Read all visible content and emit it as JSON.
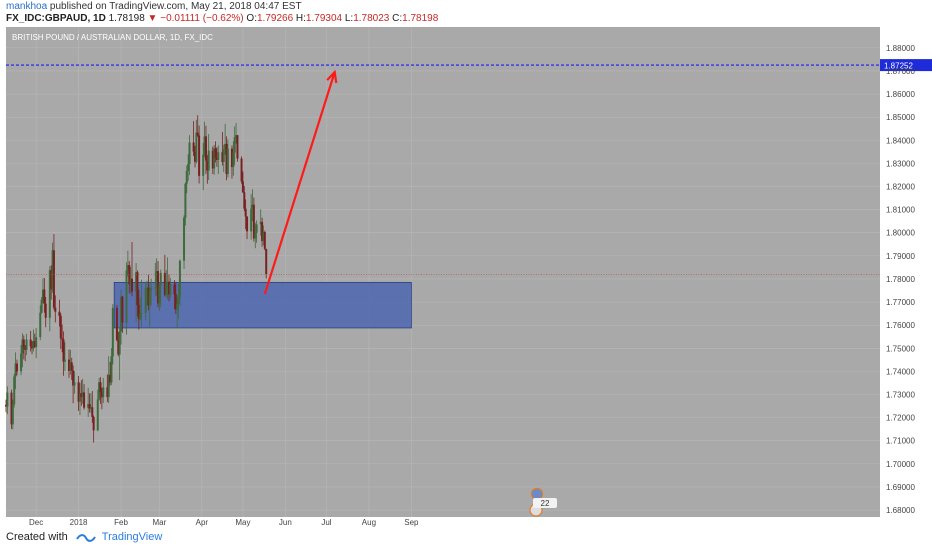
{
  "header": {
    "author": "mankhoa",
    "published": "published on TradingView.com, May 21, 2018 04:47 EST",
    "symbol": "FX_IDC:GBPAUD, 1D",
    "last": "1.78198",
    "change": "−0.01111 (−0.62%)",
    "o_label": "O:",
    "o": "1.79266",
    "h_label": "H:",
    "h": "1.79304",
    "l_label": "L:",
    "l": "1.78023",
    "c_label": "C:",
    "c": "1.78198"
  },
  "footer": {
    "created": "Created with",
    "brand": "TradingView"
  },
  "colors": {
    "background": "#a9a9a9",
    "bull": "#3d6b3d",
    "bear": "#7a2020",
    "zone": "#4d67b0",
    "arrow": "#ff1a1a",
    "target_line": "#1a1aff",
    "price_line": "#b85050"
  },
  "chart_data": {
    "type": "candlestick",
    "title": "BRITISH POUND / AUSTRALIAN DOLLAR, 1D, FX_IDC",
    "y_ticks": [
      "1.88000",
      "1.87000",
      "1.86000",
      "1.85000",
      "1.84000",
      "1.83000",
      "1.82000",
      "1.81000",
      "1.80000",
      "1.79000",
      "1.78000",
      "1.77000",
      "1.76000",
      "1.75000",
      "1.74000",
      "1.73000",
      "1.72000",
      "1.71000",
      "1.70000",
      "1.69000",
      "1.68000"
    ],
    "ylim": [
      1.677,
      1.889
    ],
    "x_ticks": [
      "Dec",
      "2018",
      "Feb",
      "Mar",
      "Apr",
      "May",
      "Jun",
      "Jul",
      "Aug",
      "Sep"
    ],
    "target_price": "1.87252",
    "current_price": 1.78198,
    "zone": {
      "y_top": 1.7785,
      "y_bottom": 1.7588,
      "x_start": "2018-01-27",
      "x_end": "2018-09-01"
    },
    "arrow": {
      "from": [
        "2018-05-17",
        1.7735
      ],
      "to": [
        "2018-07-07",
        1.8695
      ]
    },
    "events_label": "22",
    "grid": true,
    "ohlc": [
      [
        1.7255,
        1.7278,
        1.7223,
        1.7248
      ],
      [
        1.7248,
        1.7335,
        1.7215,
        1.7308
      ],
      [
        1.7308,
        1.7321,
        1.7151,
        1.7171
      ],
      [
        1.7171,
        1.7278,
        1.7149,
        1.7257
      ],
      [
        1.7257,
        1.7389,
        1.7244,
        1.7378
      ],
      [
        1.7378,
        1.7482,
        1.7323,
        1.7434
      ],
      [
        1.7434,
        1.7451,
        1.7383,
        1.74
      ],
      [
        1.74,
        1.7514,
        1.7384,
        1.7477
      ],
      [
        1.7477,
        1.7565,
        1.7418,
        1.7538
      ],
      [
        1.7538,
        1.7556,
        1.7452,
        1.7504
      ],
      [
        1.7504,
        1.7514,
        1.7444,
        1.7493
      ],
      [
        1.7493,
        1.7563,
        1.7471,
        1.7538
      ],
      [
        1.7538,
        1.7575,
        1.7486,
        1.7509
      ],
      [
        1.7509,
        1.7532,
        1.7474,
        1.7499
      ],
      [
        1.7499,
        1.7581,
        1.7486,
        1.7531
      ],
      [
        1.7531,
        1.7564,
        1.7502,
        1.7505
      ],
      [
        1.7505,
        1.7588,
        1.7457,
        1.7548
      ],
      [
        1.7548,
        1.7686,
        1.7535,
        1.7654
      ],
      [
        1.7654,
        1.7721,
        1.7649,
        1.7709
      ],
      [
        1.7709,
        1.7803,
        1.7695,
        1.7754
      ],
      [
        1.7754,
        1.7804,
        1.7654,
        1.7693
      ],
      [
        1.7693,
        1.7722,
        1.7591,
        1.7632
      ],
      [
        1.7632,
        1.7855,
        1.7573,
        1.7838
      ],
      [
        1.7838,
        1.7859,
        1.7711,
        1.7755
      ],
      [
        1.7755,
        1.7957,
        1.774,
        1.7924
      ],
      [
        1.7924,
        1.7994,
        1.7666,
        1.7676
      ],
      [
        1.7676,
        1.7729,
        1.7612,
        1.7658
      ],
      [
        1.7658,
        1.771,
        1.7594,
        1.764
      ],
      [
        1.764,
        1.7652,
        1.7497,
        1.7543
      ],
      [
        1.7543,
        1.7603,
        1.7483,
        1.7538
      ],
      [
        1.7538,
        1.7573,
        1.7381,
        1.7442
      ],
      [
        1.7442,
        1.7526,
        1.7402,
        1.7451
      ],
      [
        1.7451,
        1.7495,
        1.7372,
        1.7402
      ],
      [
        1.7402,
        1.7493,
        1.7385,
        1.7439
      ],
      [
        1.7439,
        1.7459,
        1.7363,
        1.7404
      ],
      [
        1.7404,
        1.7426,
        1.7262,
        1.7339
      ],
      [
        1.7339,
        1.7401,
        1.7303,
        1.7353
      ],
      [
        1.7353,
        1.738,
        1.7229,
        1.7269
      ],
      [
        1.7269,
        1.7349,
        1.7211,
        1.7305
      ],
      [
        1.7305,
        1.7362,
        1.7251,
        1.729
      ],
      [
        1.729,
        1.7368,
        1.726,
        1.7309
      ],
      [
        1.7309,
        1.7345,
        1.7234,
        1.7243
      ],
      [
        1.7243,
        1.7329,
        1.7203,
        1.7258
      ],
      [
        1.7258,
        1.7305,
        1.7222,
        1.7239
      ],
      [
        1.7239,
        1.7306,
        1.7221,
        1.7245
      ],
      [
        1.7245,
        1.7315,
        1.7178,
        1.7203
      ],
      [
        1.7203,
        1.7209,
        1.7092,
        1.7145
      ],
      [
        1.7145,
        1.7321,
        1.7141,
        1.7278
      ],
      [
        1.7278,
        1.7372,
        1.7274,
        1.7353
      ],
      [
        1.7353,
        1.7375,
        1.7259,
        1.7309
      ],
      [
        1.7309,
        1.7329,
        1.7236,
        1.7288
      ],
      [
        1.7288,
        1.7372,
        1.7263,
        1.7331
      ],
      [
        1.7331,
        1.7387,
        1.7267,
        1.7289
      ],
      [
        1.7289,
        1.7466,
        1.7263,
        1.7385
      ],
      [
        1.7385,
        1.7441,
        1.7338,
        1.7352
      ],
      [
        1.7352,
        1.7501,
        1.7341,
        1.7465
      ],
      [
        1.7465,
        1.7691,
        1.743,
        1.7675
      ],
      [
        1.7675,
        1.7687,
        1.753,
        1.7536
      ],
      [
        1.7536,
        1.7571,
        1.7465,
        1.7473
      ],
      [
        1.7473,
        1.7592,
        1.7362,
        1.7573
      ],
      [
        1.7573,
        1.7754,
        1.7516,
        1.7723
      ],
      [
        1.7723,
        1.7726,
        1.7567,
        1.7611
      ],
      [
        1.7611,
        1.7872,
        1.7559,
        1.7837
      ],
      [
        1.7837,
        1.7922,
        1.7812,
        1.786
      ],
      [
        1.786,
        1.7878,
        1.7737,
        1.7777
      ],
      [
        1.7777,
        1.7852,
        1.7736,
        1.7801
      ],
      [
        1.7801,
        1.796,
        1.7725,
        1.7745
      ],
      [
        1.7745,
        1.7869,
        1.7614,
        1.7829
      ],
      [
        1.7829,
        1.7837,
        1.7637,
        1.7687
      ],
      [
        1.7687,
        1.7754,
        1.7581,
        1.7626
      ],
      [
        1.7626,
        1.7719,
        1.7621,
        1.7651
      ],
      [
        1.7651,
        1.7797,
        1.7593,
        1.7653
      ],
      [
        1.7653,
        1.7788,
        1.7621,
        1.7762
      ],
      [
        1.7762,
        1.7792,
        1.7683,
        1.7762
      ],
      [
        1.7762,
        1.7818,
        1.7664,
        1.7686
      ],
      [
        1.7686,
        1.778,
        1.7592,
        1.7751
      ],
      [
        1.7751,
        1.7801,
        1.7685,
        1.7762
      ],
      [
        1.7762,
        1.787,
        1.7725,
        1.7762
      ],
      [
        1.7762,
        1.7889,
        1.7728,
        1.7834
      ],
      [
        1.7834,
        1.7877,
        1.7677,
        1.7694
      ],
      [
        1.7694,
        1.7777,
        1.7662,
        1.7772
      ],
      [
        1.7772,
        1.7841,
        1.7677,
        1.7826
      ],
      [
        1.7826,
        1.7904,
        1.7724,
        1.7731
      ],
      [
        1.7731,
        1.7838,
        1.7719,
        1.7784
      ],
      [
        1.7784,
        1.7893,
        1.7711,
        1.7788
      ],
      [
        1.7788,
        1.7819,
        1.7703,
        1.7733
      ],
      [
        1.7733,
        1.7804,
        1.7715,
        1.7776
      ],
      [
        1.7776,
        1.7795,
        1.7668,
        1.7734
      ],
      [
        1.7734,
        1.7787,
        1.7648,
        1.7668
      ],
      [
        1.7668,
        1.7731,
        1.7591,
        1.7692
      ],
      [
        1.7692,
        1.778,
        1.7627,
        1.7722
      ],
      [
        1.7722,
        1.7884,
        1.7684,
        1.7879
      ],
      [
        1.7879,
        1.8075,
        1.7843,
        1.8065
      ],
      [
        1.8065,
        1.8218,
        1.8031,
        1.8212
      ],
      [
        1.8212,
        1.8291,
        1.8171,
        1.8267
      ],
      [
        1.8267,
        1.8339,
        1.8224,
        1.8297
      ],
      [
        1.8297,
        1.8422,
        1.8249,
        1.839
      ],
      [
        1.839,
        1.8483,
        1.8332,
        1.8351
      ],
      [
        1.8351,
        1.8375,
        1.8282,
        1.8307
      ],
      [
        1.8307,
        1.8488,
        1.8299,
        1.8433
      ],
      [
        1.8433,
        1.8508,
        1.8415,
        1.8421
      ],
      [
        1.8421,
        1.8464,
        1.8213,
        1.8246
      ],
      [
        1.8246,
        1.8389,
        1.8184,
        1.8338
      ],
      [
        1.8338,
        1.848,
        1.8326,
        1.8417
      ],
      [
        1.8417,
        1.8463,
        1.8254,
        1.8312
      ],
      [
        1.8312,
        1.8336,
        1.8212,
        1.8269
      ],
      [
        1.8269,
        1.8427,
        1.8228,
        1.8355
      ],
      [
        1.8355,
        1.8373,
        1.8254,
        1.8278
      ],
      [
        1.8278,
        1.838,
        1.825,
        1.8365
      ],
      [
        1.8365,
        1.8395,
        1.8304,
        1.8324
      ],
      [
        1.8324,
        1.837,
        1.8285,
        1.8315
      ],
      [
        1.8315,
        1.8378,
        1.8254,
        1.8348
      ],
      [
        1.8348,
        1.8436,
        1.8291,
        1.8306
      ],
      [
        1.8306,
        1.8381,
        1.8262,
        1.8361
      ],
      [
        1.8361,
        1.8471,
        1.8337,
        1.8384
      ],
      [
        1.8384,
        1.8417,
        1.8227,
        1.8254
      ],
      [
        1.8254,
        1.8404,
        1.8239,
        1.8364
      ],
      [
        1.8364,
        1.8378,
        1.8234,
        1.8284
      ],
      [
        1.8284,
        1.8396,
        1.8247,
        1.8346
      ],
      [
        1.8346,
        1.846,
        1.8293,
        1.8414
      ],
      [
        1.8414,
        1.8475,
        1.8385,
        1.8422
      ],
      [
        1.8422,
        1.8423,
        1.8307,
        1.8321
      ],
      [
        1.8321,
        1.833,
        1.8212,
        1.8222
      ],
      [
        1.8222,
        1.8265,
        1.8171,
        1.8175
      ],
      [
        1.8175,
        1.8202,
        1.8093,
        1.8104
      ],
      [
        1.8104,
        1.8144,
        1.8015,
        1.807
      ],
      [
        1.807,
        1.8071,
        1.7972,
        1.8006
      ],
      [
        1.8006,
        1.8167,
        1.797,
        1.8104
      ],
      [
        1.8104,
        1.8188,
        1.8049,
        1.8121
      ],
      [
        1.8121,
        1.8152,
        1.7962,
        1.7975
      ],
      [
        1.7975,
        1.8043,
        1.7933,
        1.7999
      ],
      [
        1.7999,
        1.8053,
        1.7956,
        1.8036
      ],
      [
        1.8036,
        1.8101,
        1.7987,
        1.8047
      ],
      [
        1.8047,
        1.8065,
        1.7939,
        1.7964
      ],
      [
        1.7964,
        1.8031,
        1.7946,
        1.8003
      ],
      [
        1.8003,
        1.8009,
        1.7924,
        1.793
      ],
      [
        1.793,
        1.793,
        1.7802,
        1.782
      ]
    ]
  }
}
